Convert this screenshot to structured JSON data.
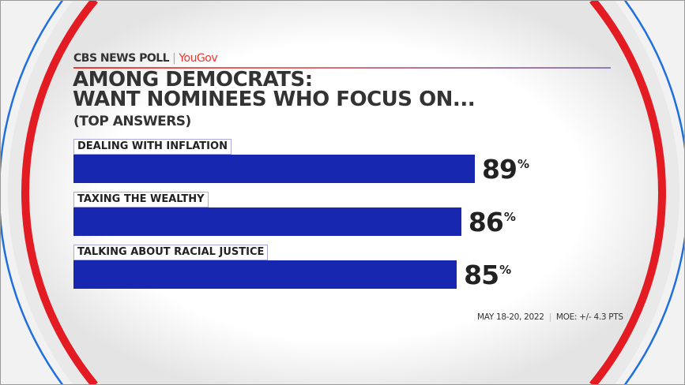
{
  "header": {
    "brand": "CBS NEWS POLL",
    "partner": "YouGov",
    "separator": "|"
  },
  "colors": {
    "bar": "#1727b0",
    "accent_red": "#e31b23",
    "accent_blue": "#1f6fe0"
  },
  "chart_data": {
    "type": "bar",
    "orientation": "horizontal",
    "title": "AMONG DEMOCRATS:\nWANT NOMINEES WHO FOCUS ON...",
    "title_lines": [
      "AMONG DEMOCRATS:",
      "WANT NOMINEES WHO FOCUS ON..."
    ],
    "subtitle": "(TOP ANSWERS)",
    "categories": [
      "DEALING WITH INFLATION",
      "TAXING THE WEALTHY",
      "TALKING ABOUT RACIAL JUSTICE"
    ],
    "values": [
      89,
      86,
      85
    ],
    "unit": "%",
    "xlim": [
      0,
      100
    ],
    "grid": false
  },
  "footer": {
    "date": "MAY 18-20, 2022",
    "separator": "|",
    "moe": "MOE: +/- 4.3 PTS"
  }
}
